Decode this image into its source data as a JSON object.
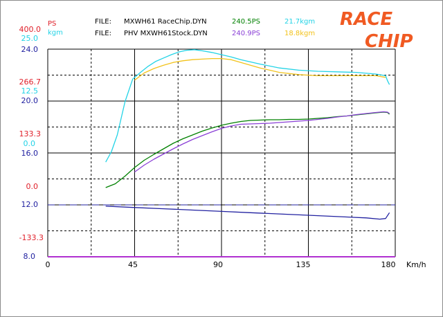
{
  "header": {
    "ps_label": "PS",
    "kgm_label": "kgm",
    "files": [
      {
        "prefix": "FILE:",
        "name": "MXWH61 RaceChip.DYN",
        "ps": "240.5PS",
        "kgm": "21.7kgm",
        "ps_color": "#008000",
        "kgm_color": "#22d3e6"
      },
      {
        "prefix": "FILE:",
        "name": "PHV MXWH61Stock.DYN",
        "ps": "240.9PS",
        "kgm": "18.8kgm",
        "ps_color": "#8a3fd6",
        "kgm_color": "#f2c21a"
      }
    ]
  },
  "logo": {
    "line1": "RACE",
    "line2": "CHIP",
    "color": "#f05a22"
  },
  "axis_labels": {
    "ps_ticks": [
      "400.0",
      "266.7",
      "133.3",
      "0.0",
      "-133.3"
    ],
    "kgm_ticks": [
      "25.0",
      "12.5",
      "0.0"
    ],
    "third_ticks": [
      "24.0",
      "20.0",
      "16.0",
      "12.0",
      "8.0"
    ],
    "x_ticks": [
      "0",
      "45",
      "90",
      "135",
      "180"
    ],
    "x_unit": "Km/h"
  },
  "colors": {
    "ps": "#e0202a",
    "kgm": "#22d3e6",
    "third_axis": "#2020a0",
    "grid": "#000000"
  },
  "chart_data": {
    "type": "line",
    "title": "",
    "xlabel": "Km/h",
    "xlim": [
      0,
      180
    ],
    "xticks": [
      0,
      45,
      90,
      135,
      180
    ],
    "ylim_ps": [
      -200,
      400
    ],
    "ylim_kgm": [
      -12.5,
      25
    ],
    "ylim_third": [
      8,
      24
    ],
    "grid": true,
    "series": [
      {
        "name": "240.5PS",
        "axis": "ps",
        "color": "#008000",
        "x": [
          30,
          35,
          40,
          45,
          50,
          55,
          60,
          65,
          70,
          75,
          80,
          85,
          90,
          95,
          100,
          105,
          110,
          115,
          120,
          125,
          130,
          135,
          140,
          145,
          150,
          155,
          160,
          165,
          170,
          174,
          176,
          177
        ],
        "y": [
          0,
          11,
          33,
          58,
          79,
          96,
          112,
          128,
          141,
          152,
          163,
          172,
          180,
          186,
          191,
          194,
          195,
          196,
          196,
          197,
          197,
          198,
          200,
          202,
          205,
          207,
          210,
          213,
          216,
          218,
          217,
          212
        ]
      },
      {
        "name": "240.9PS",
        "axis": "ps",
        "color": "#8a3fd6",
        "x": [
          45,
          50,
          55,
          60,
          65,
          70,
          75,
          80,
          85,
          90,
          95,
          100,
          105,
          110,
          115,
          120,
          125,
          130,
          135,
          140,
          145,
          150,
          155,
          160,
          165,
          170,
          174,
          176,
          177
        ],
        "y": [
          45,
          65,
          82,
          97,
          112,
          126,
          139,
          150,
          161,
          171,
          178,
          183,
          184,
          185,
          186,
          188,
          190,
          192,
          194,
          197,
          200,
          204,
          207,
          211,
          214,
          217,
          219,
          218,
          214
        ]
      },
      {
        "name": "21.7kgm",
        "axis": "kgm",
        "color": "#22d3e6",
        "x": [
          30,
          33,
          36,
          40,
          44,
          48,
          52,
          56,
          60,
          64,
          68,
          72,
          76,
          80,
          85,
          90,
          95,
          100,
          110,
          120,
          130,
          140,
          150,
          160,
          170,
          175,
          176,
          177
        ],
        "y": [
          4.6,
          6.5,
          9.5,
          15.5,
          19.6,
          20.8,
          21.9,
          22.8,
          23.4,
          24.0,
          24.5,
          24.8,
          24.9,
          24.7,
          24.4,
          24.0,
          23.6,
          23.1,
          22.3,
          21.6,
          21.2,
          21.0,
          20.9,
          20.8,
          20.5,
          20.2,
          19.3,
          18.6
        ]
      },
      {
        "name": "18.8kgm",
        "axis": "kgm",
        "color": "#f2c21a",
        "x": [
          45,
          50,
          55,
          60,
          65,
          70,
          75,
          80,
          85,
          90,
          95,
          100,
          110,
          120,
          130,
          140,
          150,
          160,
          170,
          175
        ],
        "y": [
          19.4,
          20.7,
          21.5,
          22.1,
          22.6,
          22.9,
          23.1,
          23.2,
          23.3,
          23.3,
          23.1,
          22.6,
          21.6,
          20.8,
          20.4,
          20.2,
          20.2,
          20.2,
          20.2,
          19.9
        ]
      },
      {
        "name": "",
        "axis": "third",
        "color": "#2020a0",
        "x": [
          30,
          45,
          60,
          75,
          90,
          105,
          120,
          135,
          150,
          165,
          172,
          175,
          177
        ],
        "y": [
          11.9,
          11.8,
          11.7,
          11.6,
          11.5,
          11.4,
          11.3,
          11.2,
          11.1,
          11.0,
          10.9,
          10.95,
          11.4
        ]
      }
    ],
    "reference_lines": [
      {
        "axis": "third",
        "value": 12,
        "style": "dashed",
        "color": "#2020a0"
      },
      {
        "axis": "third",
        "value": 8,
        "style": "solid",
        "color": "#b030d0"
      }
    ]
  }
}
